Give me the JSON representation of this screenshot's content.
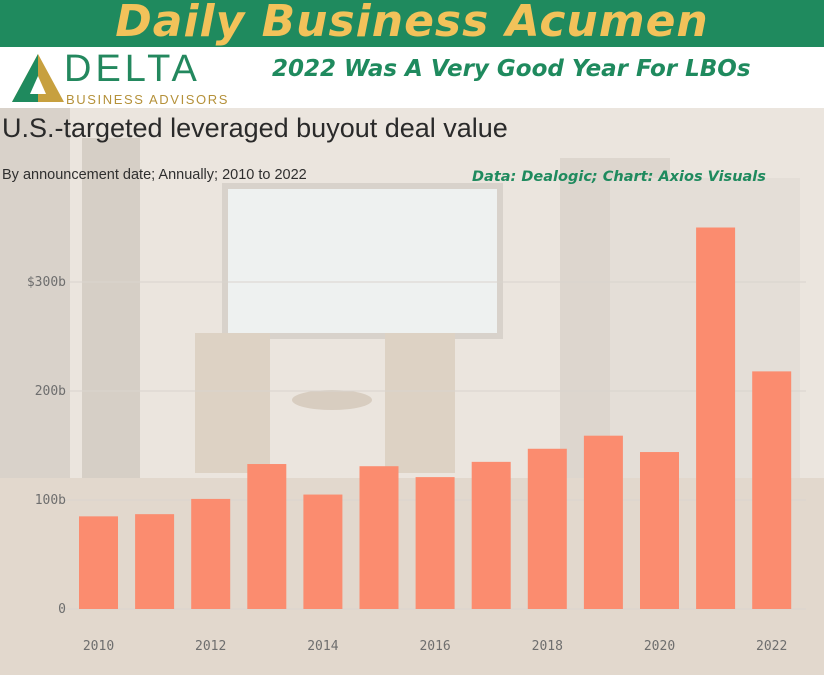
{
  "header": {
    "site_title": "Daily Business Acumen",
    "headline": "2022 Was A Very Good Year For LBOs"
  },
  "logo": {
    "wordmark": "DELTA",
    "subtitle": "BUSINESS ADVISORS"
  },
  "colors": {
    "brand_green": "#1f8a5e",
    "brand_gold": "#f2c25a",
    "bar": "#fb8c6f"
  },
  "chart_data": {
    "type": "bar",
    "title": "U.S.-targeted leveraged buyout deal value",
    "subtitle": "By announcement date; Annually; 2010 to 2022",
    "source": "Data: Dealogic; Chart: Axios Visuals",
    "categories": [
      "2010",
      "2011",
      "2012",
      "2013",
      "2014",
      "2015",
      "2016",
      "2017",
      "2018",
      "2019",
      "2020",
      "2021",
      "2022"
    ],
    "values": [
      85,
      87,
      101,
      133,
      105,
      131,
      121,
      135,
      147,
      159,
      144,
      350,
      218
    ],
    "x_tick_labels": [
      "2010",
      "2012",
      "2014",
      "2016",
      "2018",
      "2020",
      "2022"
    ],
    "y_tick_labels": [
      "0",
      "100b",
      "200b",
      "$300b"
    ],
    "y_ticks": [
      0,
      100,
      200,
      300
    ],
    "ylim": [
      0,
      350
    ],
    "grid": true,
    "legend": "none"
  }
}
